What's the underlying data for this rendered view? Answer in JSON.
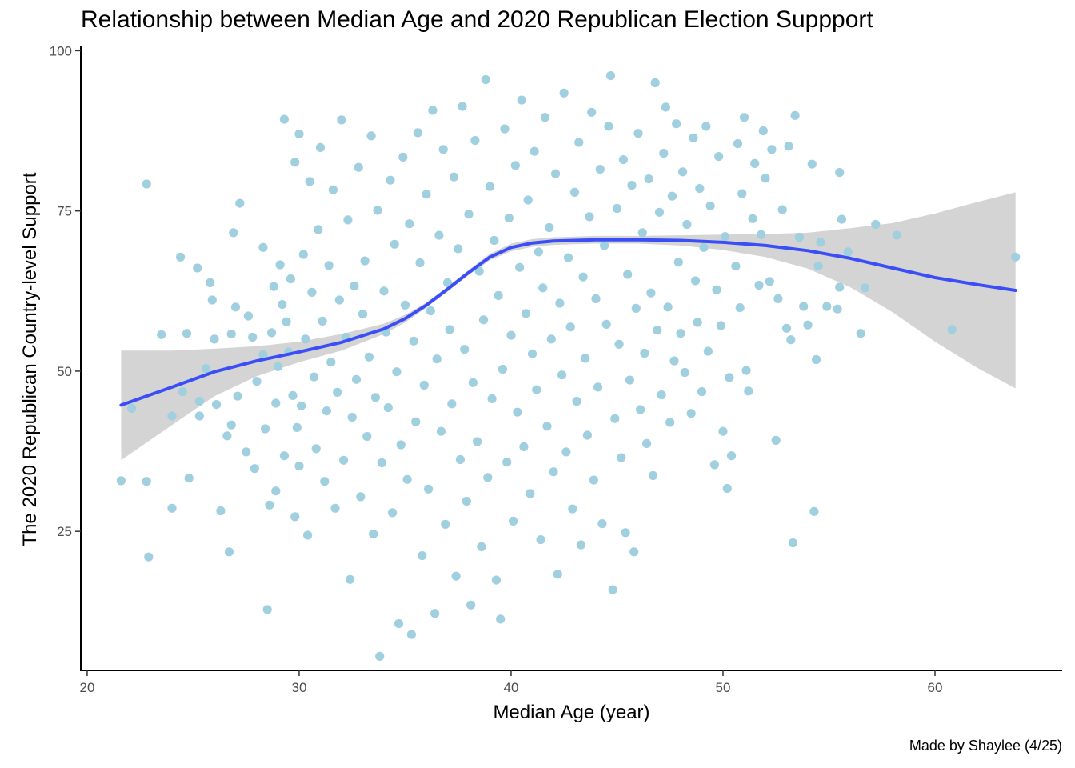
{
  "chart_data": {
    "type": "scatter",
    "title": "Relationship between Median Age and 2020 Republican Election Suppport",
    "xlabel": "Median Age (year)",
    "ylabel": "The 2020 Republican Country-level Support",
    "caption": "Made by Shaylee (4/25)",
    "xlim": [
      19.7,
      66.0
    ],
    "ylim": [
      3.3,
      100.8
    ],
    "x_ticks": [
      20,
      30,
      40,
      50,
      60
    ],
    "y_ticks": [
      25,
      50,
      75,
      100
    ],
    "grid": false,
    "legend": "none",
    "colors": {
      "points": "#a0cfe0",
      "smooth_line": "#3b4ef5",
      "confidence_band": "#cccccc"
    },
    "points": [
      [
        21.6,
        32.9
      ],
      [
        22.1,
        44.2
      ],
      [
        22.8,
        79.2
      ],
      [
        22.8,
        32.8
      ],
      [
        22.9,
        21.0
      ],
      [
        23.5,
        55.7
      ],
      [
        24.0,
        43.0
      ],
      [
        24.0,
        28.6
      ],
      [
        24.4,
        67.8
      ],
      [
        24.5,
        46.8
      ],
      [
        24.7,
        55.9
      ],
      [
        24.8,
        33.3
      ],
      [
        25.2,
        66.1
      ],
      [
        25.3,
        45.3
      ],
      [
        25.3,
        43.0
      ],
      [
        25.6,
        50.4
      ],
      [
        25.8,
        63.8
      ],
      [
        25.9,
        61.1
      ],
      [
        26.0,
        55.0
      ],
      [
        26.1,
        44.8
      ],
      [
        26.3,
        28.2
      ],
      [
        26.6,
        39.9
      ],
      [
        26.7,
        21.8
      ],
      [
        26.8,
        41.6
      ],
      [
        26.8,
        55.8
      ],
      [
        26.9,
        71.6
      ],
      [
        27.0,
        60.0
      ],
      [
        27.1,
        46.1
      ],
      [
        27.2,
        76.2
      ],
      [
        27.5,
        37.4
      ],
      [
        27.6,
        58.6
      ],
      [
        27.8,
        55.3
      ],
      [
        27.9,
        34.8
      ],
      [
        28.0,
        48.4
      ],
      [
        28.3,
        52.6
      ],
      [
        28.3,
        69.3
      ],
      [
        28.4,
        41.0
      ],
      [
        28.5,
        12.8
      ],
      [
        28.6,
        29.1
      ],
      [
        28.7,
        56.0
      ],
      [
        28.8,
        63.2
      ],
      [
        28.9,
        31.3
      ],
      [
        28.9,
        45.0
      ],
      [
        29.0,
        50.7
      ],
      [
        29.1,
        66.6
      ],
      [
        29.2,
        60.4
      ],
      [
        29.3,
        89.3
      ],
      [
        29.3,
        36.8
      ],
      [
        29.4,
        57.7
      ],
      [
        29.5,
        53.0
      ],
      [
        29.6,
        64.4
      ],
      [
        29.7,
        46.2
      ],
      [
        29.8,
        82.6
      ],
      [
        29.8,
        27.3
      ],
      [
        29.9,
        41.2
      ],
      [
        30.0,
        35.2
      ],
      [
        30.0,
        87.0
      ],
      [
        30.1,
        44.6
      ],
      [
        30.2,
        68.2
      ],
      [
        30.3,
        55.0
      ],
      [
        30.4,
        24.4
      ],
      [
        30.5,
        79.6
      ],
      [
        30.6,
        62.3
      ],
      [
        30.7,
        49.1
      ],
      [
        30.8,
        37.9
      ],
      [
        30.9,
        72.1
      ],
      [
        31.0,
        84.9
      ],
      [
        31.1,
        57.8
      ],
      [
        31.2,
        32.8
      ],
      [
        31.3,
        43.8
      ],
      [
        31.4,
        66.5
      ],
      [
        31.5,
        51.4
      ],
      [
        31.6,
        78.3
      ],
      [
        31.7,
        28.6
      ],
      [
        31.8,
        46.7
      ],
      [
        31.9,
        61.1
      ],
      [
        32.0,
        89.2
      ],
      [
        32.1,
        36.1
      ],
      [
        32.2,
        55.3
      ],
      [
        32.3,
        73.6
      ],
      [
        32.4,
        17.5
      ],
      [
        32.5,
        42.8
      ],
      [
        32.6,
        63.3
      ],
      [
        32.7,
        48.7
      ],
      [
        32.8,
        81.8
      ],
      [
        32.9,
        30.4
      ],
      [
        33.0,
        58.9
      ],
      [
        33.1,
        67.2
      ],
      [
        33.2,
        39.8
      ],
      [
        33.3,
        52.2
      ],
      [
        33.4,
        86.7
      ],
      [
        33.5,
        24.6
      ],
      [
        33.6,
        45.9
      ],
      [
        33.7,
        75.1
      ],
      [
        33.8,
        5.5
      ],
      [
        33.9,
        35.7
      ],
      [
        34.0,
        62.5
      ],
      [
        34.1,
        56.1
      ],
      [
        34.2,
        44.3
      ],
      [
        34.3,
        79.8
      ],
      [
        34.4,
        27.9
      ],
      [
        34.5,
        69.8
      ],
      [
        34.6,
        49.9
      ],
      [
        34.7,
        10.6
      ],
      [
        34.8,
        38.5
      ],
      [
        34.9,
        83.4
      ],
      [
        35.0,
        60.3
      ],
      [
        35.1,
        33.1
      ],
      [
        35.2,
        73.0
      ],
      [
        35.3,
        8.9
      ],
      [
        35.4,
        54.7
      ],
      [
        35.5,
        42.1
      ],
      [
        35.6,
        87.2
      ],
      [
        35.7,
        66.9
      ],
      [
        35.8,
        21.2
      ],
      [
        35.9,
        47.8
      ],
      [
        36.0,
        77.6
      ],
      [
        36.1,
        31.6
      ],
      [
        36.2,
        59.4
      ],
      [
        36.3,
        90.7
      ],
      [
        36.4,
        12.2
      ],
      [
        36.5,
        51.9
      ],
      [
        36.6,
        71.2
      ],
      [
        36.7,
        40.6
      ],
      [
        36.8,
        84.6
      ],
      [
        36.9,
        26.1
      ],
      [
        37.0,
        63.8
      ],
      [
        37.1,
        56.5
      ],
      [
        37.2,
        44.9
      ],
      [
        37.3,
        80.3
      ],
      [
        37.4,
        18.0
      ],
      [
        37.5,
        69.1
      ],
      [
        37.6,
        36.2
      ],
      [
        37.7,
        91.3
      ],
      [
        37.8,
        53.4
      ],
      [
        37.9,
        29.7
      ],
      [
        38.0,
        74.5
      ],
      [
        38.1,
        13.5
      ],
      [
        38.2,
        48.2
      ],
      [
        38.3,
        86.0
      ],
      [
        38.4,
        39.0
      ],
      [
        38.5,
        65.6
      ],
      [
        38.6,
        22.6
      ],
      [
        38.7,
        58.0
      ],
      [
        38.8,
        95.5
      ],
      [
        38.9,
        33.4
      ],
      [
        39.0,
        78.8
      ],
      [
        39.1,
        45.7
      ],
      [
        39.2,
        70.4
      ],
      [
        39.3,
        17.4
      ],
      [
        39.4,
        61.8
      ],
      [
        39.5,
        11.3
      ],
      [
        39.6,
        50.3
      ],
      [
        39.7,
        87.8
      ],
      [
        39.8,
        35.8
      ],
      [
        39.9,
        73.9
      ],
      [
        40.0,
        55.6
      ],
      [
        40.1,
        26.6
      ],
      [
        40.2,
        82.1
      ],
      [
        40.3,
        43.6
      ],
      [
        40.4,
        66.2
      ],
      [
        40.5,
        92.3
      ],
      [
        40.6,
        38.2
      ],
      [
        40.7,
        59.0
      ],
      [
        40.8,
        76.7
      ],
      [
        40.9,
        30.9
      ],
      [
        41.0,
        52.7
      ],
      [
        41.1,
        84.3
      ],
      [
        41.2,
        47.1
      ],
      [
        41.3,
        68.6
      ],
      [
        41.4,
        23.7
      ],
      [
        41.5,
        63.0
      ],
      [
        41.6,
        89.6
      ],
      [
        41.7,
        41.4
      ],
      [
        41.8,
        72.4
      ],
      [
        41.9,
        55.0
      ],
      [
        42.0,
        34.3
      ],
      [
        42.1,
        80.8
      ],
      [
        42.2,
        18.3
      ],
      [
        42.3,
        60.6
      ],
      [
        42.4,
        49.4
      ],
      [
        42.5,
        93.4
      ],
      [
        42.6,
        37.4
      ],
      [
        42.7,
        67.7
      ],
      [
        42.8,
        56.9
      ],
      [
        42.9,
        28.5
      ],
      [
        43.0,
        77.9
      ],
      [
        43.1,
        45.3
      ],
      [
        43.2,
        85.7
      ],
      [
        43.3,
        22.9
      ],
      [
        43.4,
        64.7
      ],
      [
        43.5,
        52.0
      ],
      [
        43.6,
        40.0
      ],
      [
        43.7,
        74.1
      ],
      [
        43.8,
        90.4
      ],
      [
        43.9,
        33.0
      ],
      [
        44.0,
        61.3
      ],
      [
        44.1,
        47.5
      ],
      [
        44.2,
        81.5
      ],
      [
        44.3,
        26.2
      ],
      [
        44.4,
        69.6
      ],
      [
        44.5,
        57.3
      ],
      [
        44.6,
        88.2
      ],
      [
        44.7,
        96.1
      ],
      [
        44.8,
        15.9
      ],
      [
        44.9,
        42.6
      ],
      [
        45.0,
        75.4
      ],
      [
        45.1,
        54.2
      ],
      [
        45.2,
        36.5
      ],
      [
        45.3,
        83.0
      ],
      [
        45.4,
        24.8
      ],
      [
        45.5,
        65.1
      ],
      [
        45.6,
        48.6
      ],
      [
        45.7,
        79.0
      ],
      [
        45.8,
        21.8
      ],
      [
        45.9,
        59.8
      ],
      [
        46.0,
        87.1
      ],
      [
        46.1,
        44.0
      ],
      [
        46.2,
        71.6
      ],
      [
        46.3,
        52.8
      ],
      [
        46.4,
        38.7
      ],
      [
        46.5,
        80.0
      ],
      [
        46.6,
        62.2
      ],
      [
        46.7,
        33.7
      ],
      [
        46.8,
        95.0
      ],
      [
        46.9,
        56.4
      ],
      [
        47.0,
        74.8
      ],
      [
        47.1,
        46.3
      ],
      [
        47.2,
        84.0
      ],
      [
        47.3,
        91.2
      ],
      [
        47.4,
        60.0
      ],
      [
        47.5,
        42.0
      ],
      [
        47.6,
        77.3
      ],
      [
        47.7,
        51.6
      ],
      [
        47.8,
        88.6
      ],
      [
        47.9,
        67.0
      ],
      [
        48.0,
        55.9
      ],
      [
        48.1,
        81.1
      ],
      [
        48.2,
        49.8
      ],
      [
        48.3,
        72.9
      ],
      [
        48.5,
        43.4
      ],
      [
        48.6,
        86.4
      ],
      [
        48.7,
        64.1
      ],
      [
        48.8,
        57.6
      ],
      [
        48.9,
        78.5
      ],
      [
        49.0,
        46.8
      ],
      [
        49.1,
        69.3
      ],
      [
        49.2,
        88.2
      ],
      [
        49.3,
        53.1
      ],
      [
        49.4,
        75.8
      ],
      [
        49.6,
        35.4
      ],
      [
        49.7,
        62.7
      ],
      [
        49.8,
        83.5
      ],
      [
        49.9,
        57.1
      ],
      [
        50.0,
        40.6
      ],
      [
        50.1,
        71.0
      ],
      [
        50.2,
        31.7
      ],
      [
        50.3,
        49.0
      ],
      [
        50.4,
        36.8
      ],
      [
        50.6,
        66.4
      ],
      [
        50.7,
        85.5
      ],
      [
        50.8,
        59.9
      ],
      [
        50.9,
        77.7
      ],
      [
        51.0,
        89.6
      ],
      [
        51.1,
        50.1
      ],
      [
        51.2,
        46.9
      ],
      [
        51.4,
        73.8
      ],
      [
        51.5,
        82.4
      ],
      [
        51.7,
        63.4
      ],
      [
        51.8,
        71.3
      ],
      [
        51.9,
        87.5
      ],
      [
        52.0,
        80.1
      ],
      [
        52.2,
        64.0
      ],
      [
        52.3,
        84.6
      ],
      [
        52.5,
        39.2
      ],
      [
        52.6,
        61.3
      ],
      [
        52.8,
        75.2
      ],
      [
        53.0,
        56.7
      ],
      [
        53.1,
        85.1
      ],
      [
        53.2,
        54.9
      ],
      [
        53.3,
        23.2
      ],
      [
        53.4,
        89.9
      ],
      [
        53.6,
        70.9
      ],
      [
        53.8,
        60.1
      ],
      [
        54.0,
        57.2
      ],
      [
        54.2,
        82.3
      ],
      [
        54.3,
        28.1
      ],
      [
        54.4,
        51.8
      ],
      [
        54.5,
        66.4
      ],
      [
        54.6,
        70.1
      ],
      [
        54.9,
        60.1
      ],
      [
        55.4,
        59.7
      ],
      [
        55.5,
        63.1
      ],
      [
        55.5,
        81.0
      ],
      [
        55.6,
        73.7
      ],
      [
        55.9,
        68.6
      ],
      [
        56.5,
        55.9
      ],
      [
        56.7,
        63.0
      ],
      [
        57.2,
        72.9
      ],
      [
        58.2,
        71.2
      ],
      [
        60.8,
        56.5
      ],
      [
        63.8,
        67.8
      ]
    ],
    "smooth_line": {
      "x": [
        21.6,
        24,
        26,
        28,
        30,
        32,
        34,
        35,
        36,
        37,
        38,
        39,
        40,
        41,
        42,
        43,
        44,
        46,
        48,
        50,
        52,
        54,
        56,
        58,
        60,
        62,
        63.8
      ],
      "y": [
        44.7,
        47.5,
        49.9,
        51.6,
        53.0,
        54.5,
        56.6,
        58.2,
        60.3,
        62.8,
        65.4,
        67.8,
        69.3,
        70.0,
        70.3,
        70.4,
        70.5,
        70.5,
        70.4,
        70.1,
        69.6,
        68.8,
        67.6,
        66.1,
        64.6,
        63.5,
        62.6
      ]
    },
    "band_upper": [
      53.2,
      53.2,
      53.5,
      53.9,
      54.6,
      55.8,
      57.4,
      58.8,
      60.7,
      63.2,
      65.8,
      68.3,
      69.9,
      70.6,
      70.9,
      71.0,
      71.1,
      71.1,
      71.2,
      71.3,
      71.4,
      71.6,
      72.3,
      73.1,
      74.6,
      76.4,
      77.9
    ],
    "band_lower": [
      36.1,
      41.6,
      46.1,
      49.2,
      51.4,
      53.2,
      55.8,
      57.6,
      59.9,
      62.4,
      65.0,
      67.3,
      68.7,
      69.4,
      69.7,
      69.8,
      69.9,
      69.9,
      69.6,
      68.9,
      67.8,
      66.0,
      63.1,
      59.2,
      54.6,
      50.5,
      47.3
    ]
  }
}
